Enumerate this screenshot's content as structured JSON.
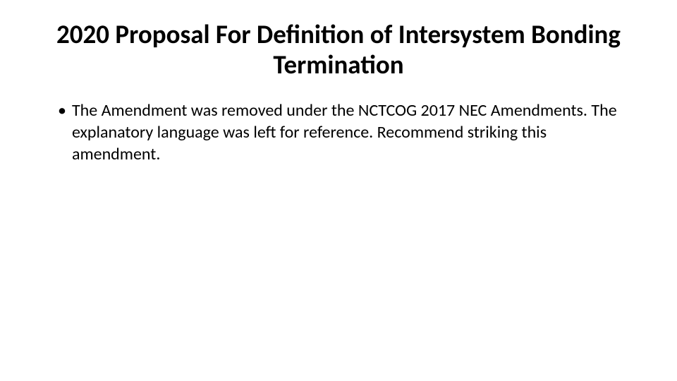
{
  "title": "2020 Proposal For Definition of Intersystem Bonding Termination",
  "title_fontsize": 37,
  "title_color": "#000000",
  "bullets": [
    {
      "text": "The Amendment was removed under the NCTCOG 2017 NEC Amendments. The explanatory language was left for reference. Recommend striking this amendment."
    }
  ],
  "body_fontsize": 24,
  "body_color": "#000000",
  "background_color": "#ffffff"
}
